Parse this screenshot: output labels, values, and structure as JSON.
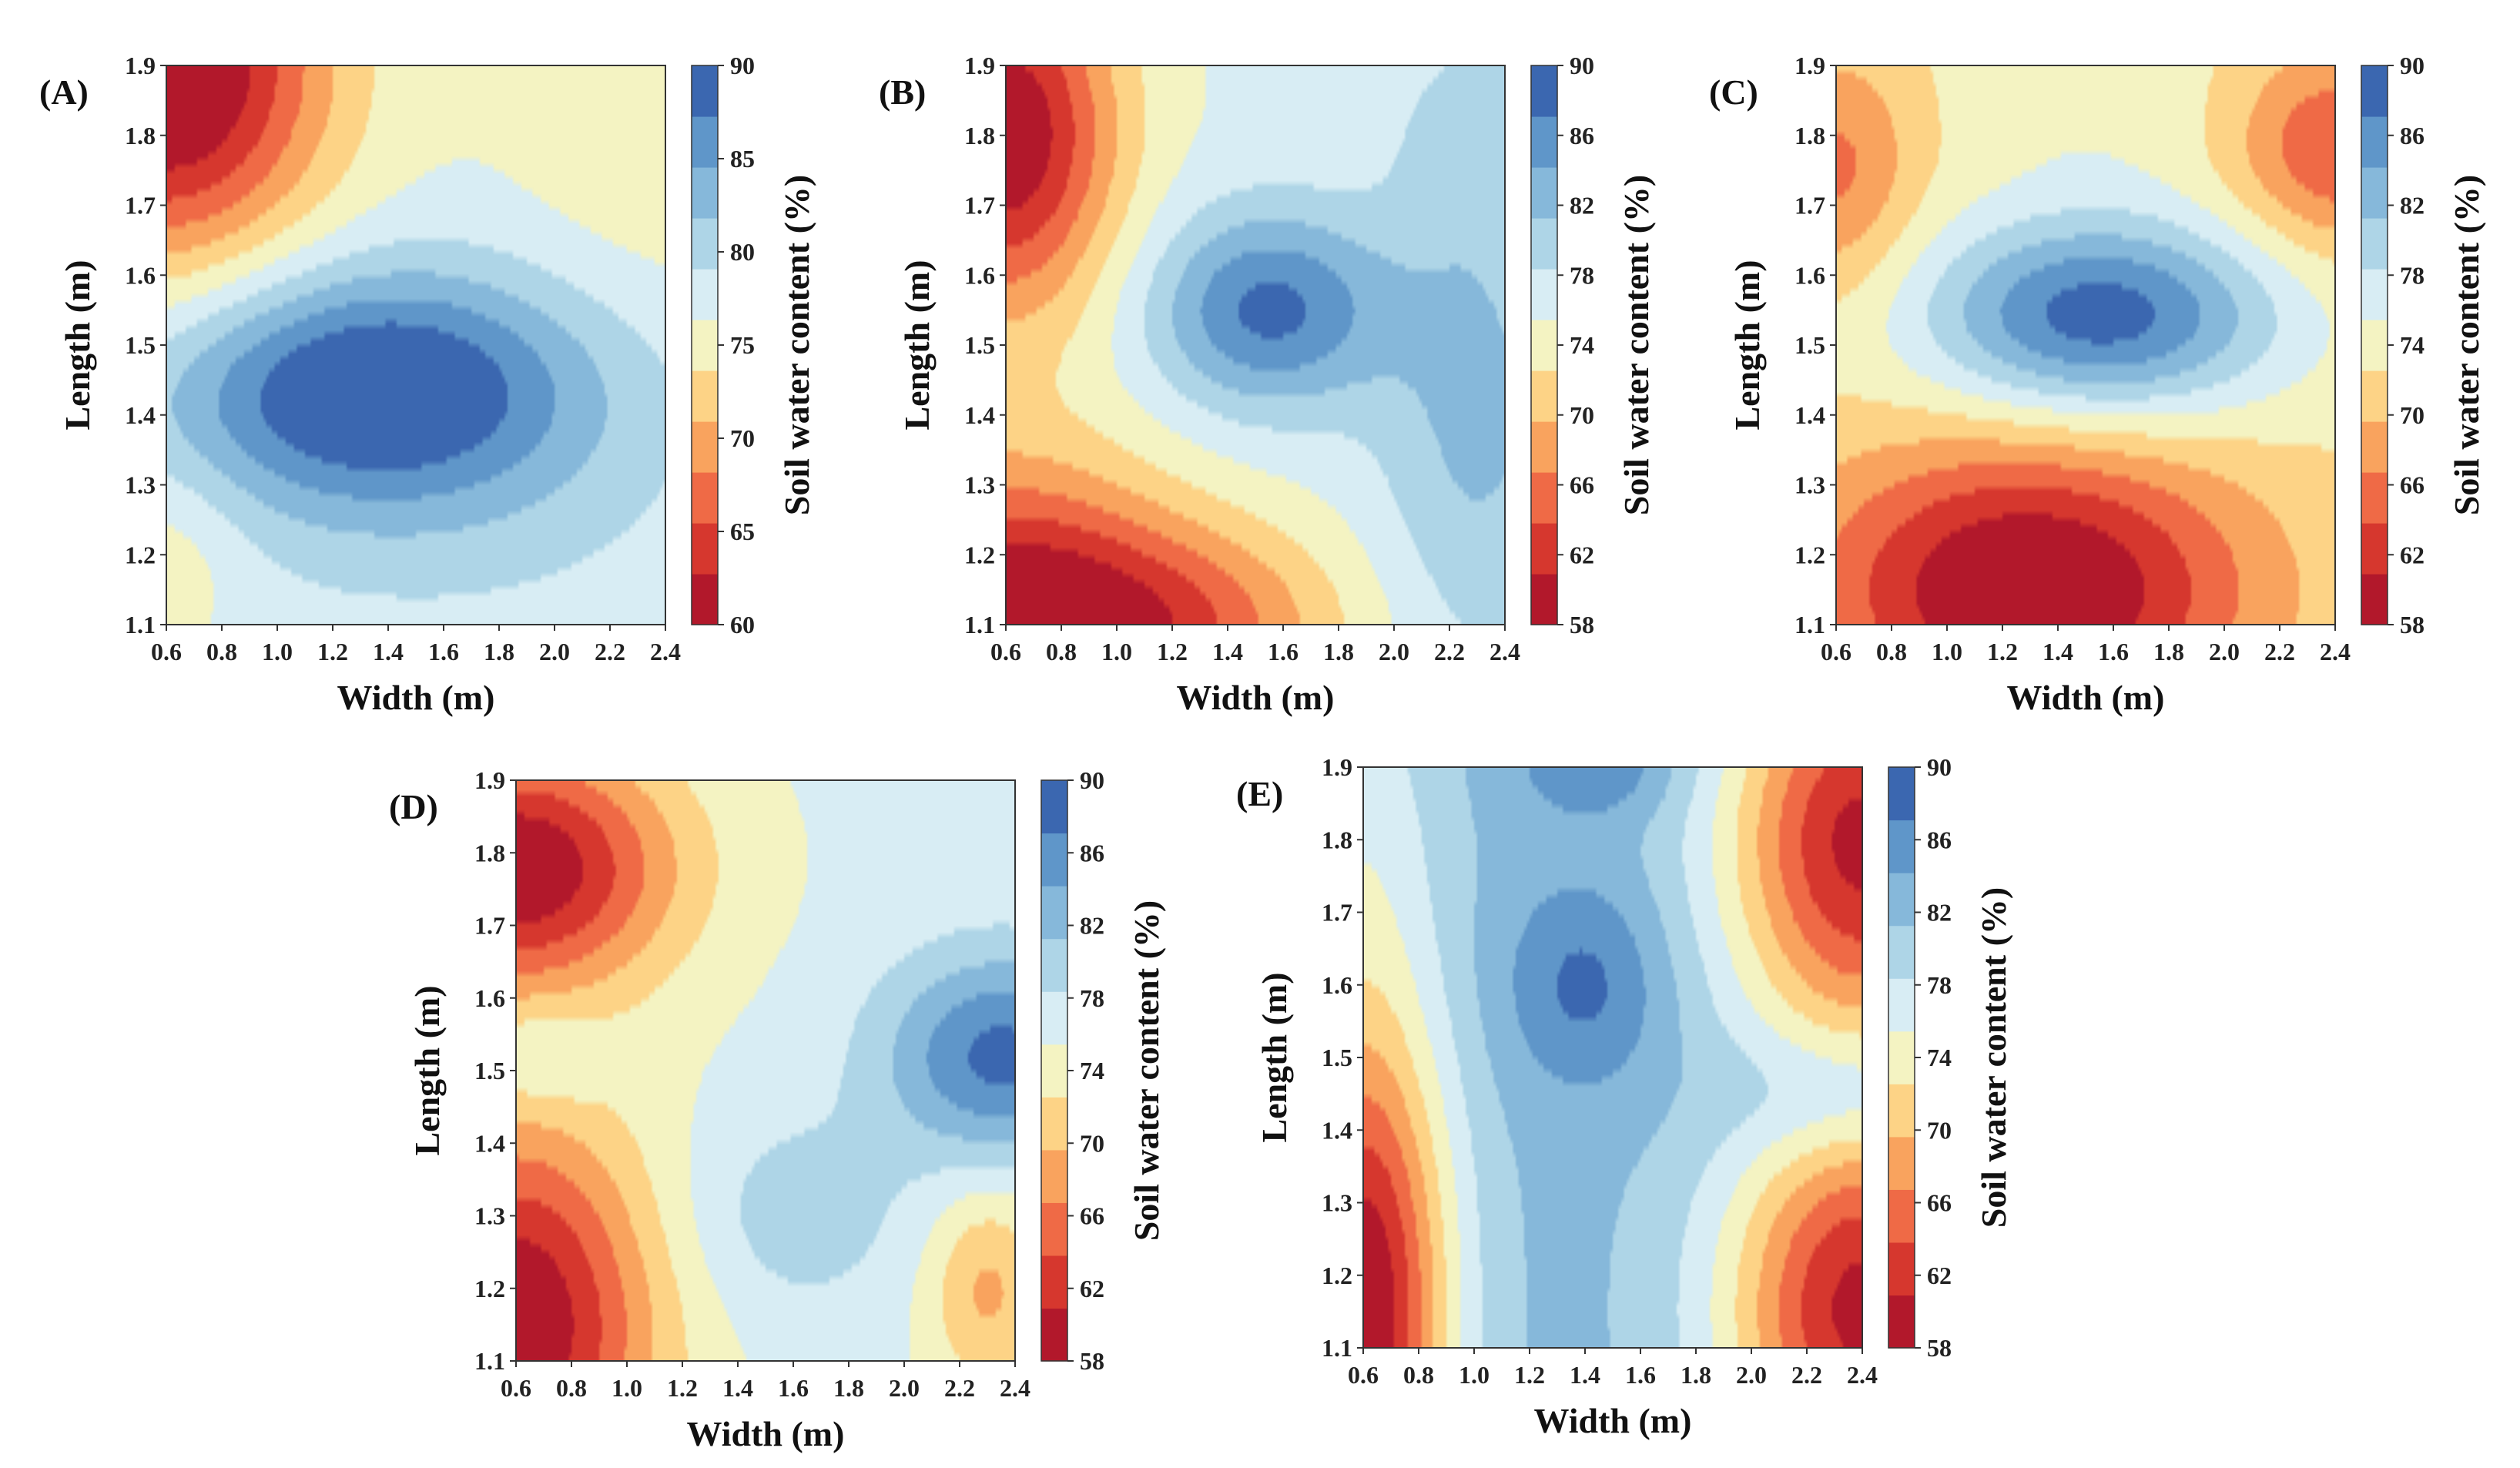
{
  "chart_data": [
    {
      "type": "contour",
      "panel_label": "(A)",
      "xlabel": "Width (m)",
      "ylabel": "Length (m)",
      "colorbar_label": "Soil water content (%)",
      "xlim": [
        0.6,
        2.4
      ],
      "ylim": [
        1.1,
        1.9
      ],
      "x_ticks": [
        "0.6",
        "0.8",
        "1.0",
        "1.2",
        "1.4",
        "1.6",
        "1.8",
        "2.0",
        "2.2",
        "2.4"
      ],
      "y_ticks": [
        "1.1",
        "1.2",
        "1.3",
        "1.4",
        "1.5",
        "1.6",
        "1.7",
        "1.8",
        "1.9"
      ],
      "levels": [
        60,
        65,
        70,
        75,
        80,
        85,
        90
      ],
      "colorbar_ticks": [
        "60",
        "65",
        "70",
        "75",
        "80",
        "85",
        "90"
      ],
      "value_range": [
        60,
        90
      ],
      "field": {
        "base": 77,
        "features": [
          {
            "x": 1.35,
            "y": 1.44,
            "amplitude": 14,
            "sx": 0.55,
            "sy": 0.12
          },
          {
            "x": 0.6,
            "y": 1.9,
            "amplitude": -19,
            "sx": 0.4,
            "sy": 0.2
          },
          {
            "x": 2.4,
            "y": 1.85,
            "amplitude": -3,
            "sx": 0.4,
            "sy": 0.2
          },
          {
            "x": 0.6,
            "y": 1.2,
            "amplitude": -3,
            "sx": 0.2,
            "sy": 0.1
          },
          {
            "x": 1.6,
            "y": 1.25,
            "amplitude": 2,
            "sx": 0.7,
            "sy": 0.15
          }
        ]
      }
    },
    {
      "type": "contour",
      "panel_label": "(B)",
      "xlabel": "Width (m)",
      "ylabel": "Length (m)",
      "colorbar_label": "Soil water content (%)",
      "xlim": [
        0.6,
        2.4
      ],
      "ylim": [
        1.1,
        1.9
      ],
      "x_ticks": [
        "0.6",
        "0.8",
        "1.0",
        "1.2",
        "1.4",
        "1.6",
        "1.8",
        "2.0",
        "2.2",
        "2.4"
      ],
      "y_ticks": [
        "1.1",
        "1.2",
        "1.3",
        "1.4",
        "1.5",
        "1.6",
        "1.7",
        "1.8",
        "1.9"
      ],
      "levels": [
        58,
        62,
        66,
        70,
        74,
        78,
        82,
        86,
        90
      ],
      "colorbar_ticks": [
        "58",
        "62",
        "66",
        "70",
        "74",
        "78",
        "82",
        "86",
        "90"
      ],
      "value_range": [
        58,
        90
      ],
      "field": {
        "base": 76,
        "features": [
          {
            "x": 1.55,
            "y": 1.55,
            "amplitude": 12,
            "sx": 0.3,
            "sy": 0.1
          },
          {
            "x": 0.6,
            "y": 1.8,
            "amplitude": -18,
            "sx": 0.28,
            "sy": 0.18
          },
          {
            "x": 0.6,
            "y": 1.1,
            "amplitude": -18,
            "sx": 0.45,
            "sy": 0.16
          },
          {
            "x": 1.3,
            "y": 1.1,
            "amplitude": -8,
            "sx": 0.4,
            "sy": 0.1
          },
          {
            "x": 2.3,
            "y": 1.4,
            "amplitude": 6,
            "sx": 0.25,
            "sy": 0.25
          },
          {
            "x": 2.3,
            "y": 1.8,
            "amplitude": 3,
            "sx": 0.2,
            "sy": 0.1
          }
        ]
      }
    },
    {
      "type": "contour",
      "panel_label": "(C)",
      "xlabel": "Width (m)",
      "ylabel": "Length (m)",
      "colorbar_label": "Soil water content (%)",
      "xlim": [
        0.6,
        2.4
      ],
      "ylim": [
        1.1,
        1.9
      ],
      "x_ticks": [
        "0.6",
        "0.8",
        "1.0",
        "1.2",
        "1.4",
        "1.6",
        "1.8",
        "2.0",
        "2.2",
        "2.4"
      ],
      "y_ticks": [
        "1.1",
        "1.2",
        "1.3",
        "1.4",
        "1.5",
        "1.6",
        "1.7",
        "1.8",
        "1.9"
      ],
      "levels": [
        58,
        62,
        66,
        70,
        74,
        78,
        82,
        86,
        90
      ],
      "colorbar_ticks": [
        "58",
        "62",
        "66",
        "70",
        "74",
        "78",
        "82",
        "86",
        "90"
      ],
      "value_range": [
        58,
        90
      ],
      "field": {
        "base": 73,
        "features": [
          {
            "x": 1.55,
            "y": 1.54,
            "amplitude": 16,
            "sx": 0.45,
            "sy": 0.1
          },
          {
            "x": 1.3,
            "y": 1.15,
            "amplitude": -16,
            "sx": 0.55,
            "sy": 0.15
          },
          {
            "x": 0.6,
            "y": 1.75,
            "amplitude": -7,
            "sx": 0.2,
            "sy": 0.12
          },
          {
            "x": 2.4,
            "y": 1.78,
            "amplitude": -9,
            "sx": 0.25,
            "sy": 0.1
          },
          {
            "x": 1.5,
            "y": 1.85,
            "amplitude": 2,
            "sx": 0.3,
            "sy": 0.1
          }
        ]
      }
    },
    {
      "type": "contour",
      "panel_label": "(D)",
      "xlabel": "Width (m)",
      "ylabel": "Length (m)",
      "colorbar_label": "Soil water content (%)",
      "xlim": [
        0.6,
        2.4
      ],
      "ylim": [
        1.1,
        1.9
      ],
      "x_ticks": [
        "0.6",
        "0.8",
        "1.0",
        "1.2",
        "1.4",
        "1.6",
        "1.8",
        "2.0",
        "2.2",
        "2.4"
      ],
      "y_ticks": [
        "1.1",
        "1.2",
        "1.3",
        "1.4",
        "1.5",
        "1.6",
        "1.7",
        "1.8",
        "1.9"
      ],
      "levels": [
        58,
        62,
        66,
        70,
        74,
        78,
        82,
        86,
        90
      ],
      "colorbar_ticks": [
        "58",
        "62",
        "66",
        "70",
        "74",
        "78",
        "82",
        "86",
        "90"
      ],
      "value_range": [
        58,
        90
      ],
      "field": {
        "base": 76,
        "features": [
          {
            "x": 2.35,
            "y": 1.52,
            "amplitude": 12,
            "sx": 0.3,
            "sy": 0.1
          },
          {
            "x": 0.6,
            "y": 1.78,
            "amplitude": -18,
            "sx": 0.4,
            "sy": 0.12
          },
          {
            "x": 0.6,
            "y": 1.15,
            "amplitude": -18,
            "sx": 0.35,
            "sy": 0.2
          },
          {
            "x": 2.3,
            "y": 1.2,
            "amplitude": -7,
            "sx": 0.15,
            "sy": 0.1
          },
          {
            "x": 1.6,
            "y": 1.3,
            "amplitude": 4,
            "sx": 0.3,
            "sy": 0.1
          },
          {
            "x": 0.7,
            "y": 1.52,
            "amplitude": 4,
            "sx": 0.15,
            "sy": 0.05
          }
        ]
      }
    },
    {
      "type": "contour",
      "panel_label": "(E)",
      "xlabel": "Width (m)",
      "ylabel": "Length (m)",
      "colorbar_label": "Soil water content (%)",
      "xlim": [
        0.6,
        2.4
      ],
      "ylim": [
        1.1,
        1.9
      ],
      "x_ticks": [
        "0.6",
        "0.8",
        "1.0",
        "1.2",
        "1.4",
        "1.6",
        "1.8",
        "2.0",
        "2.2",
        "2.4"
      ],
      "y_ticks": [
        "1.1",
        "1.2",
        "1.3",
        "1.4",
        "1.5",
        "1.6",
        "1.7",
        "1.8",
        "1.9"
      ],
      "levels": [
        58,
        62,
        66,
        70,
        74,
        78,
        82,
        86,
        90
      ],
      "colorbar_ticks": [
        "58",
        "62",
        "66",
        "70",
        "74",
        "78",
        "82",
        "86",
        "90"
      ],
      "value_range": [
        58,
        90
      ],
      "field": {
        "base": 82,
        "features": [
          {
            "x": 1.4,
            "y": 1.6,
            "amplitude": 6,
            "sx": 0.2,
            "sy": 0.1
          },
          {
            "x": 2.35,
            "y": 1.45,
            "amplitude": 6,
            "sx": 0.3,
            "sy": 0.07
          },
          {
            "x": 1.45,
            "y": 1.9,
            "amplitude": 5,
            "sx": 0.2,
            "sy": 0.05
          },
          {
            "x": 0.6,
            "y": 1.15,
            "amplitude": -24,
            "sx": 0.22,
            "sy": 0.3
          },
          {
            "x": 2.4,
            "y": 1.8,
            "amplitude": -22,
            "sx": 0.35,
            "sy": 0.2
          },
          {
            "x": 2.4,
            "y": 1.15,
            "amplitude": -22,
            "sx": 0.35,
            "sy": 0.2
          },
          {
            "x": 0.6,
            "y": 1.85,
            "amplitude": -4,
            "sx": 0.2,
            "sy": 0.2
          }
        ]
      }
    }
  ],
  "palette": [
    "#b2182b",
    "#d6372e",
    "#ef6a46",
    "#f9a35e",
    "#fdd386",
    "#f4f3c2",
    "#d8edf4",
    "#aed5e7",
    "#86b8da",
    "#5f96c9",
    "#3b67b0"
  ]
}
